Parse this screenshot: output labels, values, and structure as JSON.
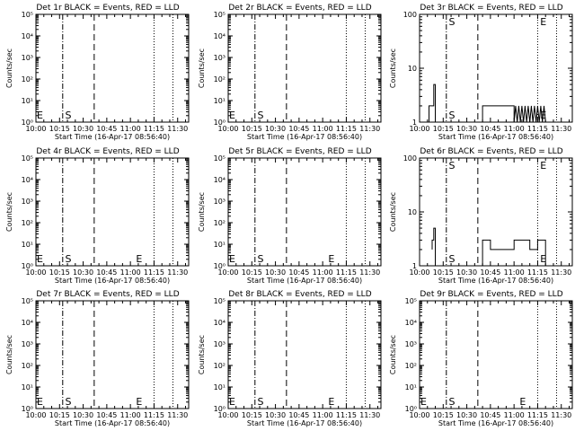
{
  "chart_data": [
    {
      "type": "line",
      "title": "Det 1r BLACK = Events, RED = LLD",
      "xlabel": "Start Time (16-Apr-17 08:56:40)",
      "ylabel": "Counts/sec",
      "yscale": "log",
      "ylim": [
        1,
        100000
      ],
      "yticks": [
        "10⁰",
        "10¹",
        "10²",
        "10³",
        "10⁴",
        "10⁵"
      ],
      "xlim": [
        "10:00",
        "11:37"
      ],
      "xticks": [
        "10:00",
        "10:15",
        "10:30",
        "10:45",
        "11:00",
        "11:15",
        "11:30"
      ],
      "markers": [
        {
          "label": "E",
          "time": "10:00"
        },
        {
          "label": "S",
          "time": "10:18"
        }
      ],
      "vlines": {
        "dashdot": [
          "10:17"
        ],
        "dashed": [
          "10:37"
        ],
        "dotted": [
          "11:15",
          "11:27"
        ]
      },
      "series": [
        {
          "color": "#000000",
          "points": []
        }
      ]
    },
    {
      "type": "line",
      "title": "Det 2r BLACK = Events, RED = LLD",
      "xlabel": "Start Time (16-Apr-17 08:56:40)",
      "ylabel": "Counts/sec",
      "yscale": "log",
      "ylim": [
        1,
        100000
      ],
      "yticks": [
        "10⁰",
        "10¹",
        "10²",
        "10³",
        "10⁴",
        "10⁵"
      ],
      "xlim": [
        "10:00",
        "11:37"
      ],
      "xticks": [
        "10:00",
        "10:15",
        "10:30",
        "10:45",
        "11:00",
        "11:15",
        "11:30"
      ],
      "markers": [
        {
          "label": "E",
          "time": "10:00"
        },
        {
          "label": "S",
          "time": "10:18"
        }
      ],
      "vlines": {
        "dashdot": [
          "10:17"
        ],
        "dashed": [
          "10:37"
        ],
        "dotted": [
          "11:15",
          "11:27"
        ]
      },
      "series": [
        {
          "color": "#000000",
          "points": []
        }
      ]
    },
    {
      "type": "line",
      "title": "Det 3r BLACK = Events, RED = LLD",
      "xlabel": "Start Time (16-Apr-17 08:56:40)",
      "ylabel": "Counts/sec",
      "yscale": "log",
      "ylim": [
        1,
        100
      ],
      "yticks": [
        "1",
        "10",
        "100"
      ],
      "xlim": [
        "10:00",
        "11:37"
      ],
      "xticks": [
        "10:00",
        "10:15",
        "10:30",
        "10:45",
        "11:00",
        "11:15",
        "11:30"
      ],
      "markers": [
        {
          "label": "S",
          "time": "10:18"
        },
        {
          "label": "E",
          "time": "11:16"
        }
      ],
      "vlines": {
        "dashdot": [
          "10:17"
        ],
        "dashed": [
          "10:37"
        ],
        "dotted": [
          "11:15",
          "11:27"
        ]
      },
      "series": [
        {
          "color": "#000000",
          "points": [
            [
              6,
              1
            ],
            [
              6,
              2
            ],
            [
              9,
              2
            ],
            [
              9,
              5
            ],
            [
              10,
              5
            ],
            [
              10,
              1
            ],
            [
              40,
              1
            ],
            [
              40,
              2
            ],
            [
              60,
              2
            ],
            [
              60,
              1
            ],
            [
              61,
              2
            ],
            [
              62,
              1
            ],
            [
              63,
              2
            ],
            [
              64,
              1
            ],
            [
              65,
              2
            ],
            [
              66,
              1
            ],
            [
              67,
              2
            ],
            [
              68,
              1
            ],
            [
              69,
              2
            ],
            [
              70,
              1
            ],
            [
              71,
              2
            ],
            [
              72,
              1
            ],
            [
              73,
              2
            ],
            [
              74,
              1
            ],
            [
              75,
              2
            ],
            [
              76,
              1
            ],
            [
              77,
              2
            ],
            [
              78,
              1
            ],
            [
              79,
              2
            ],
            [
              80,
              1
            ]
          ]
        }
      ]
    },
    {
      "type": "line",
      "title": "Det 4r BLACK = Events, RED = LLD",
      "xlabel": "Start Time (16-Apr-17 08:56:40)",
      "ylabel": "Counts/sec",
      "yscale": "log",
      "ylim": [
        1,
        100000
      ],
      "yticks": [
        "10⁰",
        "10¹",
        "10²",
        "10³",
        "10⁴",
        "10⁵"
      ],
      "xlim": [
        "10:00",
        "11:37"
      ],
      "xticks": [
        "10:00",
        "10:15",
        "10:30",
        "10:45",
        "11:00",
        "11:15",
        "11:30"
      ],
      "markers": [
        {
          "label": "E",
          "time": "10:00"
        },
        {
          "label": "S",
          "time": "10:18"
        },
        {
          "label": "E",
          "time": "11:03"
        }
      ],
      "vlines": {
        "dashdot": [
          "10:17"
        ],
        "dashed": [
          "10:37"
        ],
        "dotted": [
          "11:15",
          "11:27"
        ]
      },
      "series": [
        {
          "color": "#000000",
          "points": []
        }
      ]
    },
    {
      "type": "line",
      "title": "Det 5r BLACK = Events, RED = LLD",
      "xlabel": "Start Time (16-Apr-17 08:56:40)",
      "ylabel": "Counts/sec",
      "yscale": "log",
      "ylim": [
        1,
        100000
      ],
      "yticks": [
        "10⁰",
        "10¹",
        "10²",
        "10³",
        "10⁴",
        "10⁵"
      ],
      "xlim": [
        "10:00",
        "11:37"
      ],
      "xticks": [
        "10:00",
        "10:15",
        "10:30",
        "10:45",
        "11:00",
        "11:15",
        "11:30"
      ],
      "markers": [
        {
          "label": "E",
          "time": "10:00"
        },
        {
          "label": "S",
          "time": "10:18"
        },
        {
          "label": "E",
          "time": "11:03"
        }
      ],
      "vlines": {
        "dashdot": [
          "10:17"
        ],
        "dashed": [
          "10:37"
        ],
        "dotted": [
          "11:15",
          "11:27"
        ]
      },
      "series": [
        {
          "color": "#000000",
          "points": []
        }
      ]
    },
    {
      "type": "line",
      "title": "Det 6r BLACK = Events, RED = LLD",
      "xlabel": "Start Time (16-Apr-17 08:56:40)",
      "ylabel": "Counts/sec",
      "yscale": "log",
      "ylim": [
        1,
        100
      ],
      "yticks": [
        "1",
        "10",
        "100"
      ],
      "xlim": [
        "10:00",
        "11:37"
      ],
      "xticks": [
        "10:00",
        "10:15",
        "10:30",
        "10:45",
        "11:00",
        "11:15",
        "11:30"
      ],
      "markers": [
        {
          "label": "S",
          "time": "10:18"
        },
        {
          "label": "E",
          "time": "11:16"
        }
      ],
      "vlines": {
        "dashdot": [
          "10:17"
        ],
        "dashed": [
          "10:37"
        ],
        "dotted": [
          "11:15",
          "11:27"
        ]
      },
      "series": [
        {
          "color": "#000000",
          "points": [
            [
              8,
              2
            ],
            [
              8,
              3
            ],
            [
              9,
              3
            ],
            [
              9,
              5
            ],
            [
              10,
              5
            ],
            [
              10,
              1
            ],
            [
              40,
              1
            ],
            [
              40,
              3
            ],
            [
              45,
              3
            ],
            [
              45,
              2
            ],
            [
              60,
              2
            ],
            [
              60,
              3
            ],
            [
              70,
              3
            ],
            [
              70,
              2
            ],
            [
              75,
              2
            ],
            [
              75,
              3
            ],
            [
              80,
              3
            ],
            [
              80,
              1
            ]
          ]
        }
      ]
    },
    {
      "type": "line",
      "title": "Det 7r BLACK = Events, RED = LLD",
      "xlabel": "Start Time (16-Apr-17 08:56:40)",
      "ylabel": "Counts/sec",
      "yscale": "log",
      "ylim": [
        1,
        100000
      ],
      "yticks": [
        "10⁰",
        "10¹",
        "10²",
        "10³",
        "10⁴",
        "10⁵"
      ],
      "xlim": [
        "10:00",
        "11:37"
      ],
      "xticks": [
        "10:00",
        "10:15",
        "10:30",
        "10:45",
        "11:00",
        "11:15",
        "11:30"
      ],
      "markers": [
        {
          "label": "E",
          "time": "10:00"
        },
        {
          "label": "S",
          "time": "10:18"
        },
        {
          "label": "E",
          "time": "11:03"
        }
      ],
      "vlines": {
        "dashdot": [
          "10:17"
        ],
        "dashed": [
          "10:37"
        ],
        "dotted": [
          "11:15",
          "11:27"
        ]
      },
      "series": [
        {
          "color": "#000000",
          "points": []
        }
      ]
    },
    {
      "type": "line",
      "title": "Det 8r BLACK = Events, RED = LLD",
      "xlabel": "Start Time (16-Apr-17 08:56:40)",
      "ylabel": "Counts/sec",
      "yscale": "log",
      "ylim": [
        1,
        100000
      ],
      "yticks": [
        "10⁰",
        "10¹",
        "10²",
        "10³",
        "10⁴",
        "10⁵"
      ],
      "xlim": [
        "10:00",
        "11:37"
      ],
      "xticks": [
        "10:00",
        "10:15",
        "10:30",
        "10:45",
        "11:00",
        "11:15",
        "11:30"
      ],
      "markers": [
        {
          "label": "E",
          "time": "10:00"
        },
        {
          "label": "S",
          "time": "10:18"
        },
        {
          "label": "E",
          "time": "11:03"
        }
      ],
      "vlines": {
        "dashdot": [
          "10:17"
        ],
        "dashed": [
          "10:37"
        ],
        "dotted": [
          "11:15",
          "11:27"
        ]
      },
      "series": [
        {
          "color": "#000000",
          "points": []
        }
      ]
    },
    {
      "type": "line",
      "title": "Det 9r BLACK = Events, RED = LLD",
      "xlabel": "Start Time (16-Apr-17 08:56:40)",
      "ylabel": "Counts/sec",
      "yscale": "log",
      "ylim": [
        1,
        100000
      ],
      "yticks": [
        "10⁰",
        "10¹",
        "10²",
        "10³",
        "10⁴",
        "10⁵"
      ],
      "xlim": [
        "10:00",
        "11:37"
      ],
      "xticks": [
        "10:00",
        "10:15",
        "10:30",
        "10:45",
        "11:00",
        "11:15",
        "11:30"
      ],
      "markers": [
        {
          "label": "E",
          "time": "10:00"
        },
        {
          "label": "S",
          "time": "10:18"
        },
        {
          "label": "E",
          "time": "11:03"
        }
      ],
      "vlines": {
        "dashdot": [
          "10:17"
        ],
        "dashed": [
          "10:37"
        ],
        "dotted": [
          "11:15",
          "11:27"
        ]
      },
      "series": [
        {
          "color": "#000000",
          "points": []
        }
      ]
    }
  ]
}
